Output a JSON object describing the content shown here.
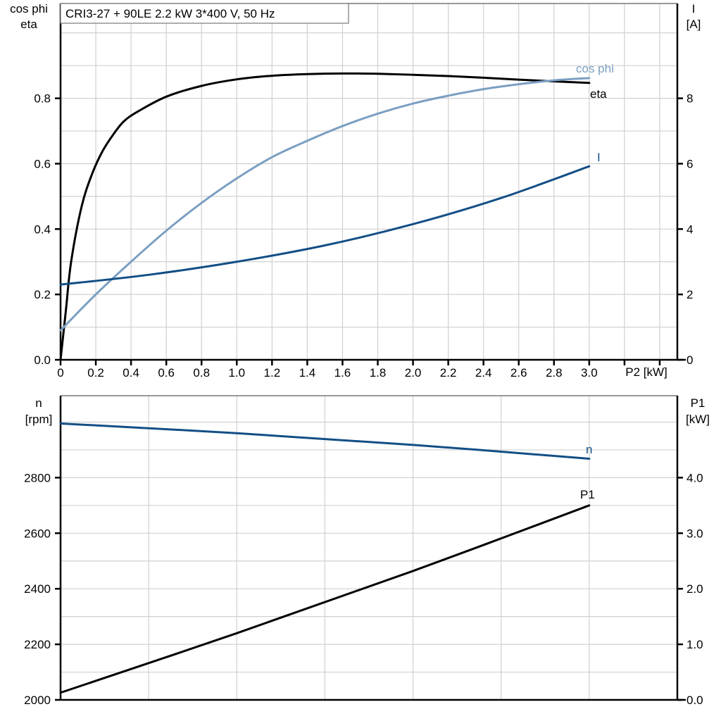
{
  "title": "CRI3-27 + 90LE   2.2 kW   3*400 V, 50 Hz",
  "colors": {
    "eta": "#000000",
    "cos_phi": "#7b9fc2",
    "I": "#134e86",
    "n": "#134e86",
    "P1": "#000000"
  },
  "chart_data": [
    {
      "type": "line",
      "xlabel": "P2 [kW]",
      "ylabel_left": [
        "cos phi",
        "eta"
      ],
      "ylabel_right": [
        "I",
        "[A]"
      ],
      "xlim": [
        0,
        3.5
      ],
      "ylim_left": [
        0,
        1.09
      ],
      "ylim_right": [
        0,
        10.9
      ],
      "grid": true,
      "x_ticks": [
        "0",
        "0.2",
        "0.4",
        "0.6",
        "0.8",
        "1.0",
        "1.2",
        "1.4",
        "1.6",
        "1.8",
        "2.0",
        "2.2",
        "2.4",
        "2.6",
        "2.8",
        "3.0"
      ],
      "y_ticks_left": [
        "0.0",
        "0.2",
        "0.4",
        "0.6",
        "0.8"
      ],
      "y_ticks_right": [
        "0",
        "2",
        "4",
        "6",
        "8"
      ],
      "series": [
        {
          "name": "eta",
          "axis": "left",
          "x": [
            0,
            0.03,
            0.06,
            0.12,
            0.18,
            0.24,
            0.3,
            0.36,
            0.44,
            0.6,
            0.8,
            1.0,
            1.2,
            1.4,
            1.6,
            1.8,
            2.0,
            2.2,
            2.4,
            2.6,
            2.8,
            3.0
          ],
          "y": [
            0,
            0.15,
            0.3,
            0.47,
            0.57,
            0.64,
            0.69,
            0.73,
            0.76,
            0.805,
            0.838,
            0.858,
            0.869,
            0.874,
            0.876,
            0.875,
            0.872,
            0.868,
            0.863,
            0.857,
            0.852,
            0.847
          ]
        },
        {
          "name": "cos phi",
          "axis": "left",
          "x": [
            0,
            0.2,
            0.4,
            0.6,
            0.8,
            1.0,
            1.2,
            1.4,
            1.6,
            1.8,
            2.0,
            2.2,
            2.4,
            2.6,
            2.8,
            3.0
          ],
          "y": [
            0.09,
            0.2,
            0.3,
            0.395,
            0.48,
            0.555,
            0.62,
            0.67,
            0.715,
            0.753,
            0.784,
            0.808,
            0.828,
            0.843,
            0.855,
            0.862
          ]
        },
        {
          "name": "I",
          "axis": "right",
          "x": [
            0,
            0.5,
            1.0,
            1.5,
            2.0,
            2.5,
            3.0
          ],
          "y": [
            2.3,
            2.6,
            3.0,
            3.5,
            4.15,
            4.95,
            5.92
          ]
        }
      ]
    },
    {
      "type": "line",
      "ylabel_left": [
        "n",
        "[rpm]"
      ],
      "ylabel_right": [
        "P1",
        "[kW]"
      ],
      "xlim": [
        0,
        3.5
      ],
      "ylim_left": [
        2000,
        3095
      ],
      "ylim_right": [
        0,
        5.475
      ],
      "grid": true,
      "y_ticks_left": [
        "2000",
        "2200",
        "2400",
        "2600",
        "2800"
      ],
      "y_ticks_right": [
        "0.0",
        "1.0",
        "2.0",
        "3.0",
        "4.0"
      ],
      "series": [
        {
          "name": "n",
          "axis": "left",
          "x": [
            0,
            1.0,
            2.0,
            3.0
          ],
          "y": [
            2995,
            2960,
            2918,
            2868
          ]
        },
        {
          "name": "P1",
          "axis": "right",
          "x": [
            0,
            1.0,
            2.0,
            3.0
          ],
          "y": [
            0.13,
            1.2,
            2.32,
            3.5
          ]
        }
      ]
    }
  ]
}
